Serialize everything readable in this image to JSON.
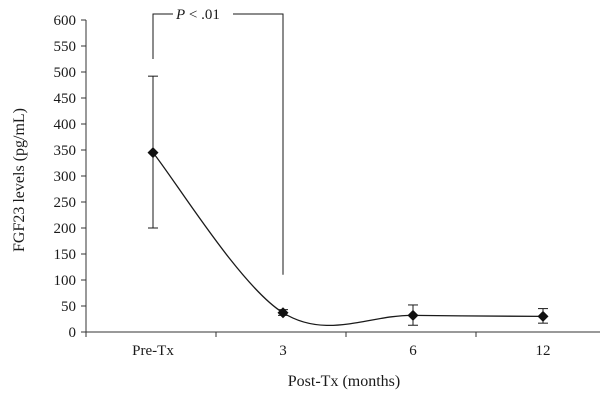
{
  "chart_data": {
    "type": "line",
    "xlabel": "Post-Tx (months)",
    "ylabel": "FGF23 levels (pg/mL)",
    "categories": [
      "Pre-Tx",
      "3",
      "6",
      "12"
    ],
    "ylim": [
      0,
      600
    ],
    "yticks": [
      0,
      50,
      100,
      150,
      200,
      250,
      300,
      350,
      400,
      450,
      500,
      550,
      600
    ],
    "grid": false,
    "series": [
      {
        "values": [
          345,
          37,
          32,
          30
        ],
        "error_low": [
          200,
          32,
          13,
          17
        ],
        "error_high": [
          492,
          43,
          52,
          45
        ]
      }
    ],
    "annotation": {
      "text_italic": "P",
      "text_rest": " < .01",
      "from_category": 0,
      "to_category": 1
    }
  }
}
